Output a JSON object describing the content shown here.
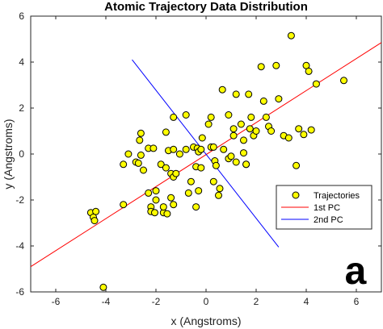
{
  "chart_data": {
    "type": "scatter",
    "title": "Atomic Trajectory Data Distribution",
    "xlabel": "x (Angstroms)",
    "ylabel": "y (Angstroms)",
    "xlim": [
      -7,
      7
    ],
    "ylim": [
      -6,
      6
    ],
    "xticks": [
      -6,
      -4,
      -2,
      0,
      2,
      4,
      6
    ],
    "yticks": [
      -6,
      -4,
      -2,
      0,
      2,
      4,
      6
    ],
    "grid": false,
    "legend_position": "bottom-right",
    "panel_label": "a",
    "series": [
      {
        "name": "Trajectories",
        "kind": "points",
        "marker_color": "#ffff00",
        "edge_color": "#000000",
        "points": [
          [
            -4.1,
            -5.8
          ],
          [
            -4.6,
            -2.55
          ],
          [
            -4.4,
            -2.5
          ],
          [
            -4.5,
            -2.75
          ],
          [
            -4.45,
            -2.9
          ],
          [
            -3.3,
            -0.45
          ],
          [
            -3.1,
            0.0
          ],
          [
            -3.3,
            -2.2
          ],
          [
            -2.8,
            -0.35
          ],
          [
            -2.7,
            -0.4
          ],
          [
            -2.6,
            -0.05
          ],
          [
            -2.65,
            0.6
          ],
          [
            -2.6,
            0.9
          ],
          [
            -2.5,
            -0.7
          ],
          [
            -2.3,
            0.25
          ],
          [
            -2.1,
            0.25
          ],
          [
            -2.3,
            -1.7
          ],
          [
            -2.2,
            -2.3
          ],
          [
            -2.0,
            -1.6
          ],
          [
            -2.0,
            -2.0
          ],
          [
            -2.2,
            -2.5
          ],
          [
            -2.05,
            -2.55
          ],
          [
            -1.7,
            -2.55
          ],
          [
            -1.55,
            -2.6
          ],
          [
            -1.7,
            -2.3
          ],
          [
            -1.6,
            0.95
          ],
          [
            -1.8,
            -0.45
          ],
          [
            -1.6,
            -0.6
          ],
          [
            -1.5,
            0.15
          ],
          [
            -1.3,
            0.2
          ],
          [
            -1.4,
            -0.85
          ],
          [
            -1.3,
            -1.0
          ],
          [
            -1.2,
            -0.85
          ],
          [
            -1.3,
            1.6
          ],
          [
            -1.4,
            -1.9
          ],
          [
            -1.3,
            -2.2
          ],
          [
            -1.05,
            0.0
          ],
          [
            -0.8,
            1.7
          ],
          [
            -0.8,
            0.2
          ],
          [
            -0.7,
            -1.7
          ],
          [
            -0.6,
            -1.2
          ],
          [
            -0.5,
            0.3
          ],
          [
            -0.35,
            0.25
          ],
          [
            -0.4,
            -0.55
          ],
          [
            -0.2,
            -0.6
          ],
          [
            -0.3,
            0.1
          ],
          [
            -0.2,
            0.2
          ],
          [
            -0.15,
            0.7
          ],
          [
            -0.3,
            -1.6
          ],
          [
            -0.4,
            -2.3
          ],
          [
            0.1,
            1.3
          ],
          [
            0.2,
            1.6
          ],
          [
            0.2,
            0.3
          ],
          [
            0.3,
            0.3
          ],
          [
            0.35,
            -0.3
          ],
          [
            0.4,
            -0.5
          ],
          [
            0.3,
            -1.2
          ],
          [
            0.5,
            -1.8
          ],
          [
            0.55,
            -1.5
          ],
          [
            0.7,
            0.2
          ],
          [
            0.65,
            2.8
          ],
          [
            0.9,
            1.7
          ],
          [
            0.9,
            -0.2
          ],
          [
            1.0,
            -0.1
          ],
          [
            1.1,
            0.8
          ],
          [
            1.1,
            1.1
          ],
          [
            1.2,
            2.6
          ],
          [
            1.2,
            -0.35
          ],
          [
            1.4,
            1.3
          ],
          [
            1.5,
            0.6
          ],
          [
            1.5,
            0.05
          ],
          [
            1.6,
            -0.45
          ],
          [
            1.6,
            -0.45
          ],
          [
            1.7,
            2.6
          ],
          [
            1.75,
            1.1
          ],
          [
            1.8,
            1.6
          ],
          [
            1.9,
            0.8
          ],
          [
            2.0,
            1.0
          ],
          [
            2.2,
            3.8
          ],
          [
            2.3,
            2.3
          ],
          [
            2.4,
            1.6
          ],
          [
            2.5,
            1.2
          ],
          [
            2.6,
            1.0
          ],
          [
            2.8,
            3.85
          ],
          [
            2.9,
            2.4
          ],
          [
            3.1,
            0.8
          ],
          [
            3.3,
            0.7
          ],
          [
            3.4,
            5.15
          ],
          [
            3.6,
            -0.5
          ],
          [
            3.7,
            1.1
          ],
          [
            3.9,
            0.85
          ],
          [
            4.0,
            3.85
          ],
          [
            4.1,
            3.6
          ],
          [
            4.2,
            1.05
          ],
          [
            4.4,
            3.05
          ],
          [
            5.5,
            3.2
          ]
        ]
      },
      {
        "name": "1st PC",
        "kind": "line",
        "color": "#ff0000",
        "points": [
          [
            -7.0,
            -4.9
          ],
          [
            7.0,
            4.85
          ]
        ]
      },
      {
        "name": "2nd PC",
        "kind": "line",
        "color": "#0000ff",
        "points": [
          [
            -2.95,
            4.1
          ],
          [
            2.9,
            -4.05
          ]
        ]
      }
    ]
  }
}
